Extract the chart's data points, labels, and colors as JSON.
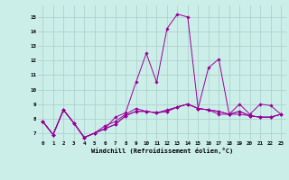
{
  "xlabel": "Windchill (Refroidissement éolien,°C)",
  "bg_color": "#cceee8",
  "line_color": "#990099",
  "grid_color": "#aacccc",
  "xlim": [
    -0.5,
    23.5
  ],
  "ylim": [
    6.5,
    15.8
  ],
  "yticks": [
    7,
    8,
    9,
    10,
    11,
    12,
    13,
    14,
    15
  ],
  "xticks": [
    0,
    1,
    2,
    3,
    4,
    5,
    6,
    7,
    8,
    9,
    10,
    11,
    12,
    13,
    14,
    15,
    16,
    17,
    18,
    19,
    20,
    21,
    22,
    23
  ],
  "series": [
    [
      7.8,
      6.9,
      8.6,
      7.7,
      6.7,
      7.0,
      7.3,
      8.1,
      8.4,
      10.5,
      12.5,
      10.5,
      14.2,
      15.2,
      15.0,
      8.7,
      11.5,
      12.1,
      8.3,
      9.0,
      8.3,
      9.0,
      8.9,
      8.3
    ],
    [
      7.8,
      6.9,
      8.6,
      7.7,
      6.7,
      7.0,
      7.3,
      7.6,
      8.2,
      8.5,
      8.5,
      8.4,
      8.5,
      8.8,
      9.0,
      8.7,
      8.6,
      8.5,
      8.3,
      8.3,
      8.2,
      8.1,
      8.1,
      8.3
    ],
    [
      7.8,
      6.9,
      8.6,
      7.7,
      6.7,
      7.0,
      7.5,
      7.8,
      8.3,
      8.7,
      8.5,
      8.4,
      8.6,
      8.8,
      9.0,
      8.7,
      8.6,
      8.5,
      8.3,
      8.5,
      8.2,
      8.1,
      8.1,
      8.3
    ],
    [
      7.8,
      6.9,
      8.6,
      7.7,
      6.7,
      7.0,
      7.3,
      7.6,
      8.2,
      8.5,
      8.5,
      8.4,
      8.5,
      8.8,
      9.0,
      8.7,
      8.6,
      8.3,
      8.3,
      8.5,
      8.2,
      8.1,
      8.1,
      8.3
    ]
  ]
}
